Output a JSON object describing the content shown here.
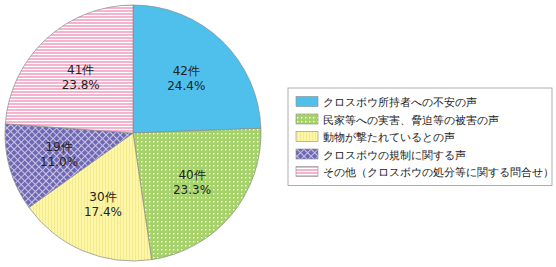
{
  "chart_data": {
    "type": "pie",
    "categories": [
      "クロスボウ所持者への不安の声",
      "民家等への実害、脅迫等の被害の声",
      "動物が撃たれているとの声",
      "クロスボウの規制に関する声",
      "その他（クロスボウの処分等に関する問合せ）"
    ],
    "values": [
      42,
      40,
      30,
      19,
      41
    ],
    "value_labels": [
      "42件",
      "40件",
      "30件",
      "19件",
      "41件"
    ],
    "percentages": [
      24.4,
      23.3,
      17.4,
      11.0,
      23.8
    ],
    "percentage_labels": [
      "24.4%",
      "23.3%",
      "17.4%",
      "11.0%",
      "23.8%"
    ],
    "colors": [
      "#4fc0ec",
      "#a6d26a",
      "#fdf6a6",
      "#6f68b2",
      "#f6b3cd"
    ],
    "data_labels": true,
    "legend": "right"
  }
}
